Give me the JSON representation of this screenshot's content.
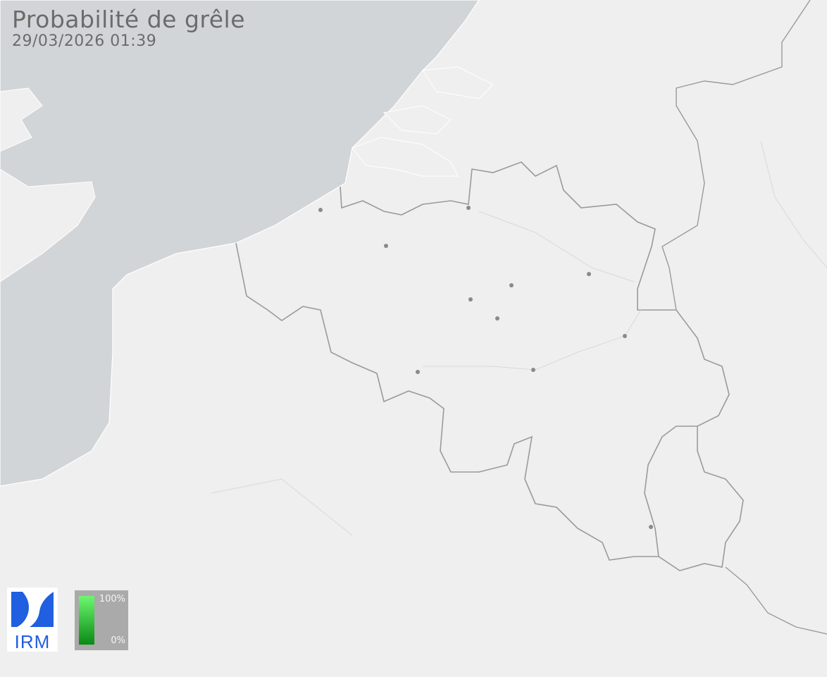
{
  "header": {
    "title": "Probabilité de grêle",
    "timestamp": "29/03/2026 01:39"
  },
  "logo": {
    "text": "IRM"
  },
  "legend": {
    "max_label": "100%",
    "min_label": "0%",
    "color_max": "#6cf770",
    "color_min": "#0a8a14"
  },
  "colors": {
    "sea": "#d2d5d7",
    "land": "#eeefee",
    "border": "#9a9a9a",
    "city": "#8a8a8a"
  }
}
